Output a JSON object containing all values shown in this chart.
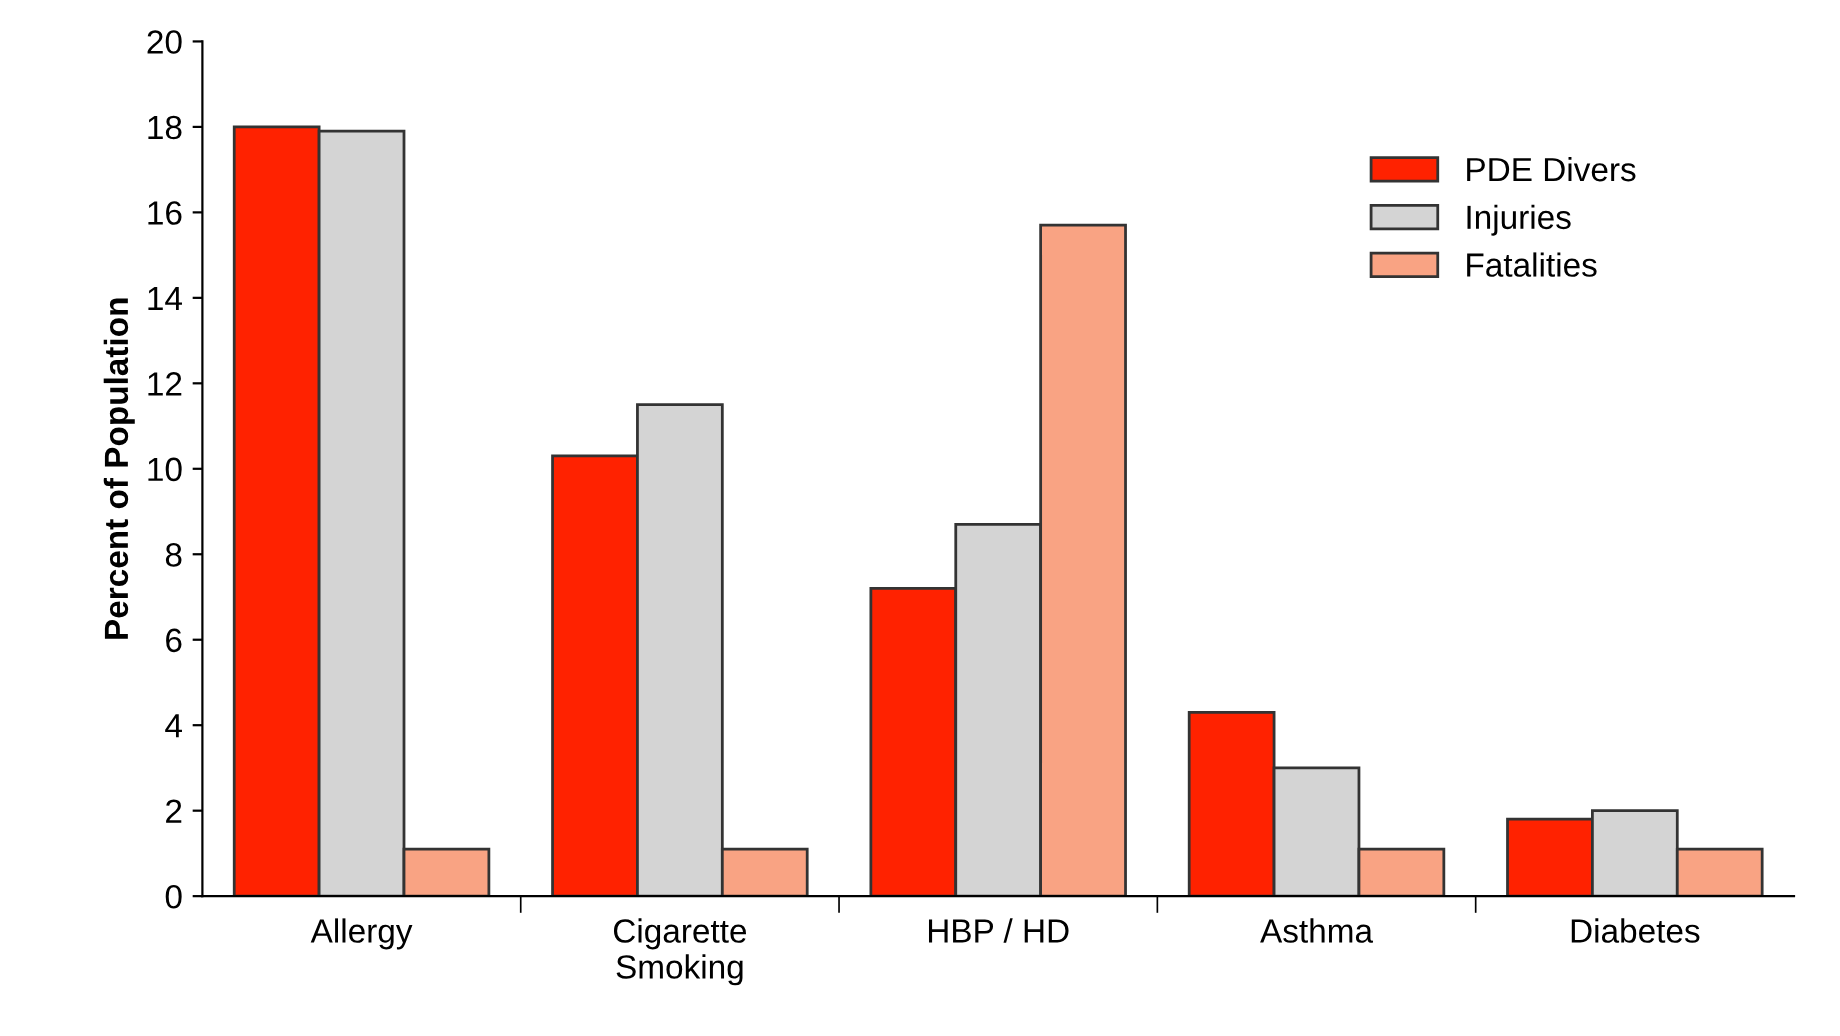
{
  "chart_data": {
    "type": "bar",
    "ylabel": "Percent of Population",
    "categories": [
      "Allergy",
      "Cigarette\nSmoking",
      "HBP / HD",
      "Asthma",
      "Diabetes"
    ],
    "series": [
      {
        "name": "PDE Divers",
        "color": "#ff2200",
        "values": [
          18.0,
          10.3,
          7.2,
          4.3,
          1.8
        ]
      },
      {
        "name": "Injuries",
        "color": "#d4d4d4",
        "values": [
          17.9,
          11.5,
          8.7,
          3.0,
          2.0
        ]
      },
      {
        "name": "Fatalities",
        "color": "#f9a383",
        "values": [
          1.1,
          1.1,
          15.7,
          1.1,
          1.1
        ]
      }
    ],
    "ylim": [
      0,
      20
    ],
    "yticks": [
      0,
      2,
      4,
      6,
      8,
      10,
      12,
      14,
      16,
      18,
      20
    ],
    "grid": false,
    "legend": "top right"
  }
}
